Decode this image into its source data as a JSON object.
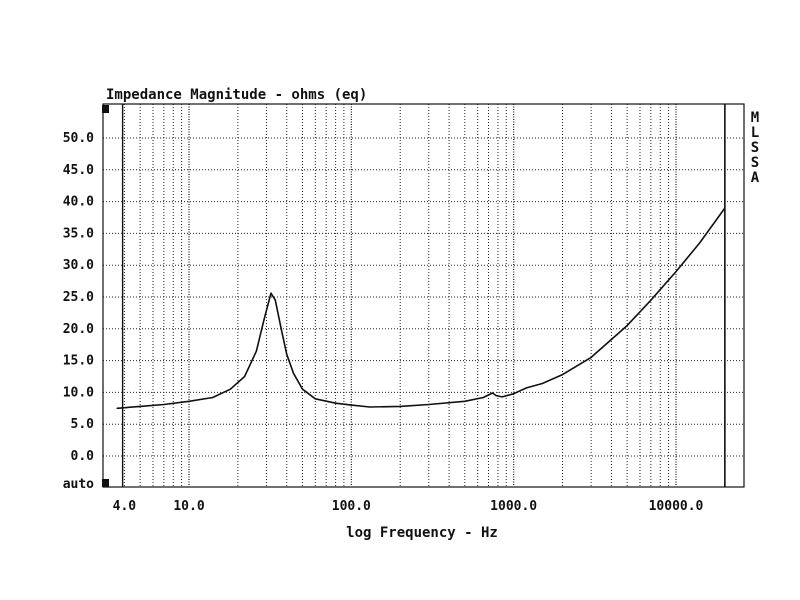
{
  "chart_data": {
    "type": "line",
    "title": "Impedance Magnitude - ohms (eq)",
    "xlabel": "log Frequency - Hz",
    "ylabel": "",
    "xscale": "log",
    "xlim": [
      3.3,
      20000
    ],
    "ylim": [
      -5,
      55
    ],
    "y_ticks": [
      "50.0",
      "45.0",
      "40.0",
      "35.0",
      "30.0",
      "25.0",
      "20.0",
      "15.0",
      "10.0",
      "5.0",
      "0.0"
    ],
    "y_tick_values": [
      50,
      45,
      40,
      35,
      30,
      25,
      20,
      15,
      10,
      5,
      0
    ],
    "y_bottom_label": "auto",
    "x_ticks": [
      "4.0",
      "10.0",
      "100.0",
      "1000.0",
      "10000.0"
    ],
    "x_tick_values": [
      4,
      10,
      100,
      1000,
      10000
    ],
    "side_label": [
      "M",
      "L",
      "S",
      "S",
      "A"
    ],
    "grid": true,
    "series": [
      {
        "name": "Impedance",
        "x": [
          3.6,
          5,
          7,
          10,
          14,
          18,
          22,
          26,
          29,
          32,
          34,
          37,
          40,
          44,
          50,
          60,
          80,
          100,
          130,
          200,
          300,
          500,
          650,
          740,
          780,
          850,
          1000,
          1200,
          1500,
          2000,
          3000,
          5000,
          7000,
          10000,
          14000,
          20000
        ],
        "y": [
          7.5,
          7.8,
          8.1,
          8.6,
          9.2,
          10.5,
          12.5,
          16.5,
          21.5,
          25.6,
          24.5,
          20.0,
          16.0,
          13.0,
          10.5,
          9.0,
          8.3,
          8.0,
          7.7,
          7.8,
          8.1,
          8.6,
          9.2,
          9.9,
          9.5,
          9.3,
          9.8,
          10.7,
          11.4,
          12.8,
          15.5,
          20.5,
          24.5,
          29.0,
          33.5,
          39.0
        ]
      }
    ]
  }
}
